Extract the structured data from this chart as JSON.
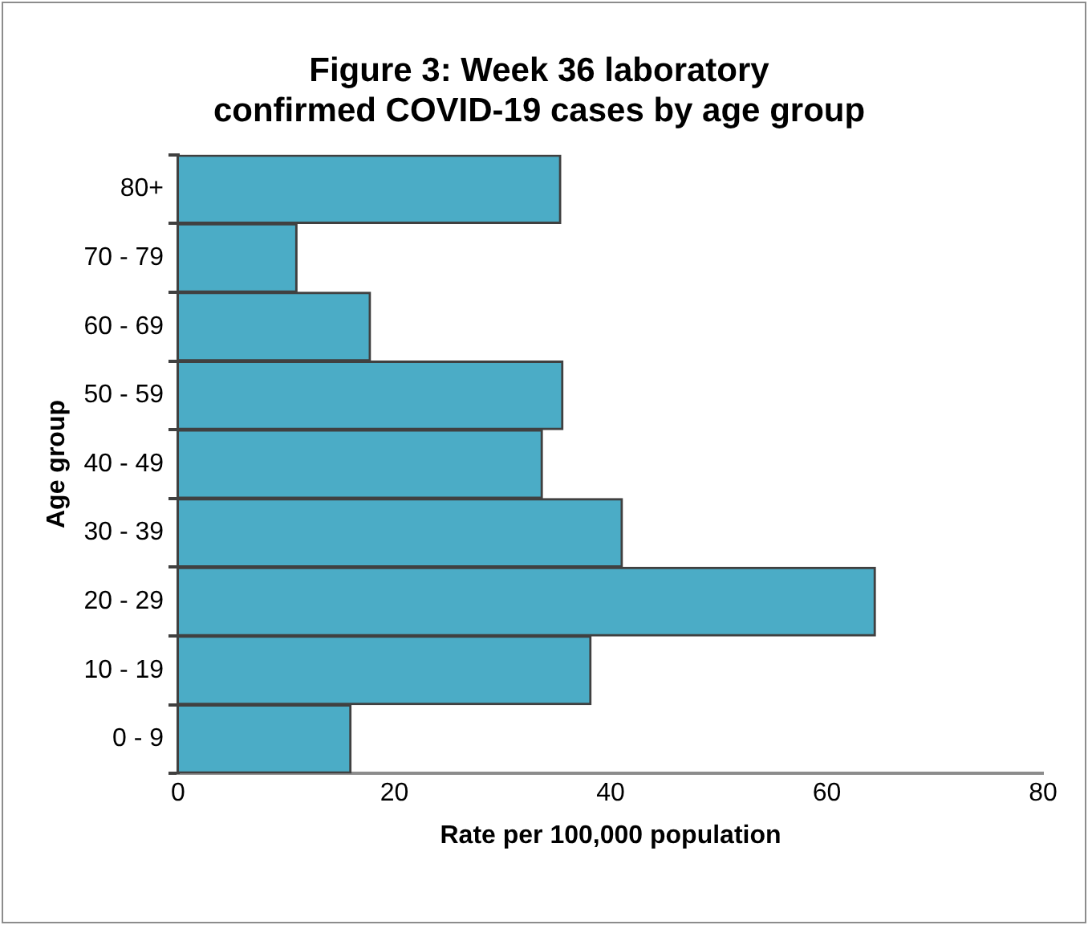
{
  "chart_data": {
    "type": "bar",
    "orientation": "horizontal",
    "title": "Figure 3: Week 36 laboratory confirmed COVID-19 cases by age group",
    "xlabel": "Rate per 100,000 population",
    "ylabel": "Age group",
    "categories": [
      "80+",
      "70 - 79",
      "60 - 69",
      "50 - 59",
      "40 - 49",
      "30 - 39",
      "20 - 29",
      "10 - 19",
      "0 - 9"
    ],
    "values": [
      35.4,
      11.0,
      17.8,
      35.6,
      33.7,
      41.1,
      64.5,
      38.2,
      16.0
    ],
    "color": "#4bacc6",
    "xlim": [
      0,
      80
    ],
    "xticks": [
      0,
      20,
      40,
      60,
      80
    ],
    "grid": false,
    "legend": false
  }
}
